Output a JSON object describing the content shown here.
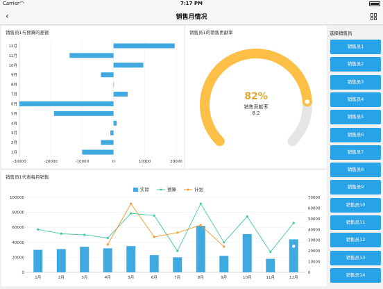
{
  "status": {
    "carrier": "Carrier",
    "time": "7:17 PM"
  },
  "nav": {
    "title": "销售月情况"
  },
  "panel1": {
    "title": "销售员1与预算的差额"
  },
  "panel2": {
    "title": "销售员1的销售贡献率",
    "percent": "82%",
    "label": "销售贡献率",
    "value": "8.2",
    "fraction": 0.82
  },
  "panel3": {
    "title": "销售员1代表每月销售"
  },
  "sidebar": {
    "title": "选择销售员",
    "items": [
      "销售员1",
      "销售员2",
      "销售员3",
      "销售员4",
      "销售员5",
      "销售员6",
      "销售员7",
      "销售员8",
      "销售员9",
      "销售员10",
      "销售员11",
      "销售员12",
      "销售员13",
      "销售员14"
    ]
  },
  "colors": {
    "accent": "#28a3e8",
    "bar": "#3fa9e0",
    "gauge": "#fdbf45",
    "gauge_track": "#e5e5e5",
    "budget": "#3fc7a8",
    "plan": "#f39a2b"
  },
  "chart_data": [
    {
      "type": "bar",
      "orientation": "horizontal",
      "categories": [
        "1月",
        "2月",
        "3月",
        "4月",
        "5月",
        "6月",
        "7月",
        "8月",
        "9月",
        "10月",
        "11月",
        "12月"
      ],
      "values": [
        -10000,
        -4000,
        -1000,
        1000,
        -19000,
        -30000,
        4500,
        0,
        -4000,
        9500,
        -14000,
        19500
      ],
      "xticks": [
        "-30000",
        "-20000",
        "-10000",
        "0",
        "10000",
        "20000"
      ],
      "xlim": [
        -30000,
        20000
      ]
    },
    {
      "type": "bar",
      "categories": [
        "1月",
        "2月",
        "3月",
        "4月",
        "5月",
        "6月",
        "7月",
        "8月",
        "9月",
        "10月",
        "11月",
        "12月"
      ],
      "legend": [
        "实际",
        "预算",
        "计划"
      ],
      "series": [
        {
          "name": "实际",
          "axis": "left",
          "kind": "bar",
          "values": [
            30000,
            31000,
            34000,
            32000,
            35000,
            23000,
            20000,
            62000,
            22000,
            51000,
            18000,
            44000
          ]
        },
        {
          "name": "预算",
          "axis": "right",
          "kind": "line",
          "values": [
            40000,
            36000,
            35000,
            32000,
            55000,
            53000,
            20000,
            64000,
            28000,
            52000,
            19000,
            46000
          ]
        },
        {
          "name": "计划",
          "axis": "right",
          "kind": "line",
          "values": [
            null,
            null,
            null,
            26000,
            64000,
            33000,
            37000,
            44000,
            24000,
            null,
            null,
            null
          ]
        }
      ],
      "yticks_left": [
        "0",
        "20000",
        "40000",
        "60000",
        "80000",
        "100000"
      ],
      "ylim_left": [
        0,
        100000
      ],
      "yticks_right": [
        "0",
        "10000",
        "20000",
        "30000",
        "40000",
        "50000",
        "60000",
        "70000"
      ],
      "ylim_right": [
        0,
        70000
      ]
    }
  ]
}
